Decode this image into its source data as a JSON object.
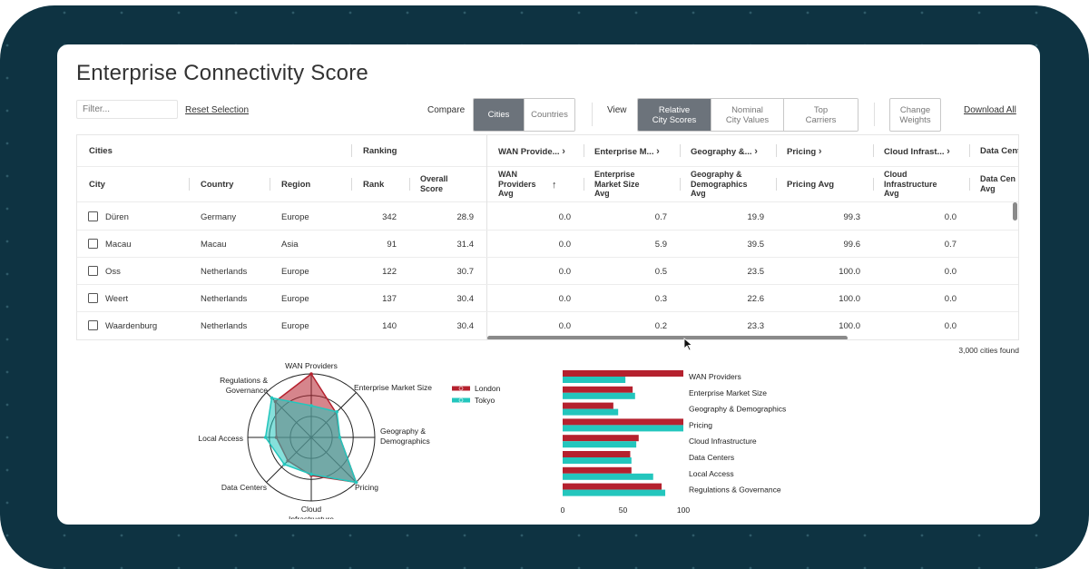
{
  "page": {
    "title": "Enterprise Connectivity Score"
  },
  "toolbar": {
    "filter_placeholder": "Filter...",
    "reset_label": "Reset Selection",
    "compare_label": "Compare",
    "compare_options": [
      "Cities",
      "Countries"
    ],
    "compare_selected": "Cities",
    "view_label": "View",
    "view_options": [
      "Relative\nCity Scores",
      "Nominal\nCity Values",
      "Top\nCarriers"
    ],
    "view_selected": "Relative City Scores",
    "change_weights_label": "Change\nWeights",
    "download_label": "Download All"
  },
  "table": {
    "groups": {
      "cities": "Cities",
      "ranking": "Ranking",
      "wan": "WAN Provide...",
      "enterprise": "Enterprise M...",
      "geography": "Geography &...",
      "pricing": "Pricing",
      "cloud": "Cloud Infrast...",
      "datacenters": "Data Cent"
    },
    "columns": {
      "city": "City",
      "country": "Country",
      "region": "Region",
      "rank": "Rank",
      "overall": "Overall\nScore",
      "wan": "WAN\nProviders\nAvg",
      "enterprise": "Enterprise\nMarket Size\nAvg",
      "geography": "Geography &\nDemographics\nAvg",
      "pricing": "Pricing Avg",
      "cloud": "Cloud\nInfrastructure\nAvg",
      "datacenters": "Data Cen\nAvg"
    },
    "sort_indicator": "↑",
    "rows": [
      {
        "city": "Düren",
        "country": "Germany",
        "region": "Europe",
        "rank": "342",
        "overall": "28.9",
        "wan": "0.0",
        "enterprise": "0.7",
        "geography": "19.9",
        "pricing": "99.3",
        "cloud": "0.0"
      },
      {
        "city": "Macau",
        "country": "Macau",
        "region": "Asia",
        "rank": "91",
        "overall": "31.4",
        "wan": "0.0",
        "enterprise": "5.9",
        "geography": "39.5",
        "pricing": "99.6",
        "cloud": "0.7"
      },
      {
        "city": "Oss",
        "country": "Netherlands",
        "region": "Europe",
        "rank": "122",
        "overall": "30.7",
        "wan": "0.0",
        "enterprise": "0.5",
        "geography": "23.5",
        "pricing": "100.0",
        "cloud": "0.0"
      },
      {
        "city": "Weert",
        "country": "Netherlands",
        "region": "Europe",
        "rank": "137",
        "overall": "30.4",
        "wan": "0.0",
        "enterprise": "0.3",
        "geography": "22.6",
        "pricing": "100.0",
        "cloud": "0.0"
      },
      {
        "city": "Waardenburg",
        "country": "Netherlands",
        "region": "Europe",
        "rank": "140",
        "overall": "30.4",
        "wan": "0.0",
        "enterprise": "0.2",
        "geography": "23.3",
        "pricing": "100.0",
        "cloud": "0.0"
      }
    ],
    "found_label": "3,000 cities found"
  },
  "colors": {
    "frame": "#0e3342",
    "london": "#b5212e",
    "tokyo": "#23c6bd",
    "active_toggle": "#6c737b"
  },
  "chart_data": [
    {
      "type": "radar",
      "axes": [
        "WAN Providers",
        "Enterprise Market Size",
        "Geography &\nDemographics",
        "Pricing",
        "Cloud\nInfrastructure",
        "Data Centers",
        "Local Access",
        "Regulations &\nGovernance"
      ],
      "series": [
        {
          "name": "London",
          "values": [
            100,
            55,
            45,
            100,
            60,
            52,
            55,
            80
          ]
        },
        {
          "name": "Tokyo",
          "values": [
            50,
            57,
            45,
            100,
            58,
            60,
            72,
            88
          ]
        }
      ],
      "rlim": [
        0,
        100
      ],
      "legend": "right"
    },
    {
      "type": "bar",
      "orientation": "horizontal",
      "categories": [
        "WAN Providers",
        "Enterprise Market Size",
        "Geography & Demographics",
        "Pricing",
        "Cloud Infrastructure",
        "Data Centers",
        "Local Access",
        "Regulations & Governance"
      ],
      "series": [
        {
          "name": "London",
          "values": [
            100,
            58,
            42,
            100,
            63,
            56,
            57,
            82
          ]
        },
        {
          "name": "Tokyo",
          "values": [
            52,
            60,
            46,
            100,
            61,
            57,
            75,
            85
          ]
        }
      ],
      "xticks": [
        "0",
        "50",
        "100"
      ],
      "xlim": [
        0,
        100
      ]
    }
  ]
}
